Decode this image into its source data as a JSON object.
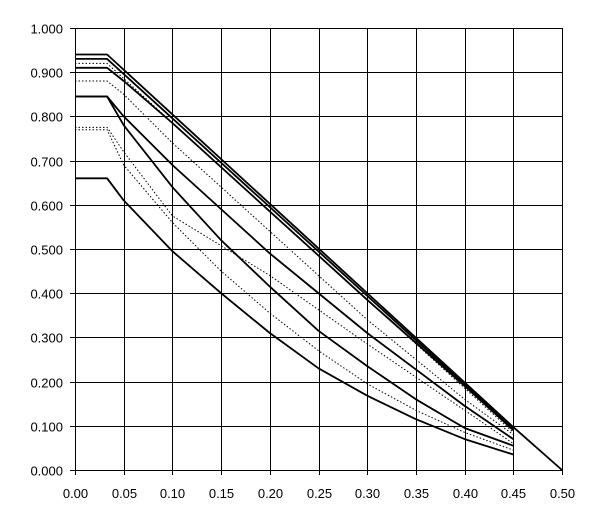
{
  "chart_data": {
    "type": "line",
    "title": "",
    "xlabel": "",
    "ylabel": "",
    "xlim": [
      0,
      0.5
    ],
    "ylim": [
      0,
      1
    ],
    "grid": true,
    "legend": "none",
    "x_ticks": [
      "0.00",
      "0.05",
      "0.10",
      "0.15",
      "0.20",
      "0.25",
      "0.30",
      "0.35",
      "0.40",
      "0.45",
      "0.50"
    ],
    "y_ticks": [
      "0.000",
      "0.100",
      "0.200",
      "0.300",
      "0.400",
      "0.500",
      "0.600",
      "0.700",
      "0.800",
      "0.900",
      "1.000"
    ],
    "colors": {
      "line": "#000000",
      "grid": "#000000",
      "background": "#ffffff"
    },
    "series": [
      {
        "style": "solid",
        "x": [
          0,
          0.033,
          0.45,
          0.5
        ],
        "y": [
          0.94,
          0.94,
          0.097,
          0.0
        ]
      },
      {
        "style": "solid",
        "x": [
          0,
          0.033,
          0.45
        ],
        "y": [
          0.93,
          0.93,
          0.093
        ]
      },
      {
        "style": "dotted",
        "x": [
          0,
          0.033,
          0.45
        ],
        "y": [
          0.92,
          0.92,
          0.085
        ]
      },
      {
        "style": "solid",
        "x": [
          0,
          0.033,
          0.05,
          0.1,
          0.2,
          0.3,
          0.4,
          0.45
        ],
        "y": [
          0.91,
          0.91,
          0.88,
          0.785,
          0.585,
          0.385,
          0.19,
          0.09
        ]
      },
      {
        "style": "dotted",
        "x": [
          0,
          0.033,
          0.05,
          0.1,
          0.2,
          0.3,
          0.4,
          0.45
        ],
        "y": [
          0.88,
          0.88,
          0.85,
          0.74,
          0.54,
          0.34,
          0.16,
          0.08
        ]
      },
      {
        "style": "solid",
        "x": [
          0,
          0.033,
          0.05,
          0.1,
          0.2,
          0.3,
          0.4,
          0.45
        ],
        "y": [
          0.845,
          0.845,
          0.8,
          0.69,
          0.49,
          0.31,
          0.145,
          0.07
        ]
      },
      {
        "style": "dotted",
        "x": [
          0,
          0.033,
          0.05,
          0.1,
          0.2,
          0.3,
          0.4,
          0.45
        ],
        "y": [
          0.775,
          0.775,
          0.72,
          0.575,
          0.44,
          0.285,
          0.135,
          0.06
        ]
      },
      {
        "style": "solid",
        "x": [
          0,
          0.033,
          0.05,
          0.1,
          0.15,
          0.2,
          0.25,
          0.3,
          0.35,
          0.4,
          0.45
        ],
        "y": [
          0.845,
          0.845,
          0.78,
          0.64,
          0.52,
          0.415,
          0.315,
          0.235,
          0.16,
          0.095,
          0.055
        ]
      },
      {
        "style": "dotted",
        "x": [
          0,
          0.033,
          0.05,
          0.1,
          0.15,
          0.2,
          0.25,
          0.3,
          0.35,
          0.4,
          0.45
        ],
        "y": [
          0.77,
          0.77,
          0.69,
          0.56,
          0.45,
          0.355,
          0.27,
          0.195,
          0.135,
          0.085,
          0.045
        ]
      },
      {
        "style": "solid",
        "x": [
          0,
          0.033,
          0.05,
          0.1,
          0.15,
          0.2,
          0.25,
          0.3,
          0.35,
          0.4,
          0.45
        ],
        "y": [
          0.66,
          0.66,
          0.61,
          0.495,
          0.4,
          0.31,
          0.23,
          0.168,
          0.115,
          0.07,
          0.035
        ]
      }
    ]
  }
}
